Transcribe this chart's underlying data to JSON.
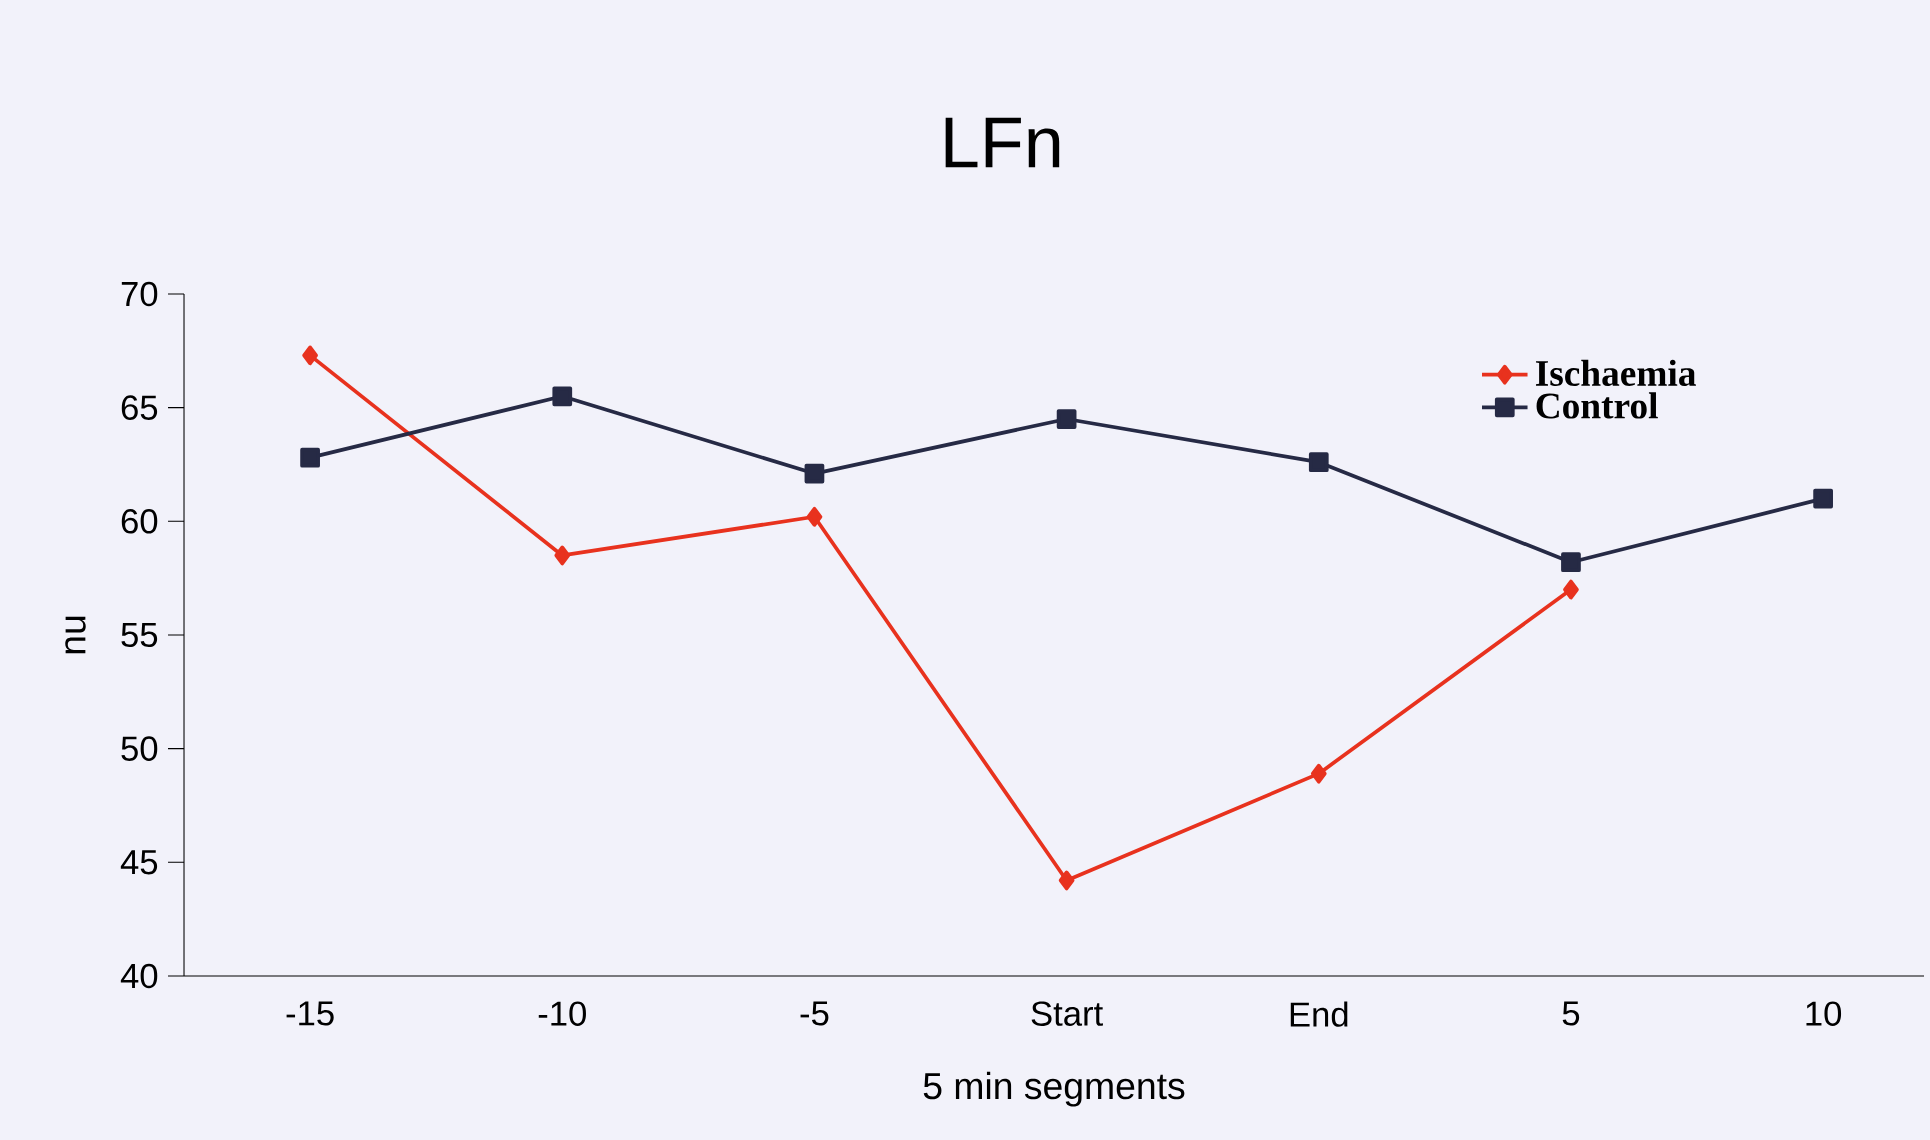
{
  "chart_data": {
    "type": "line",
    "title": "LFn",
    "xlabel": "5 min segments",
    "ylabel": "nu",
    "categories": [
      "-15",
      "-10",
      "-5",
      "Start",
      "End",
      "5",
      "10"
    ],
    "series": [
      {
        "name": "Ischaemia",
        "color": "#e8321e",
        "marker": "diamond",
        "values": [
          67.3,
          58.5,
          60.2,
          44.2,
          48.9,
          57.0,
          null
        ]
      },
      {
        "name": "Control",
        "color": "#262a45",
        "marker": "square",
        "values": [
          62.8,
          65.5,
          62.1,
          64.5,
          62.6,
          58.2,
          61.0
        ]
      }
    ],
    "ylim": [
      40,
      70
    ],
    "yticks": [
      40,
      45,
      50,
      55,
      60,
      65,
      70
    ],
    "legend": "top right",
    "line_style": "solid"
  }
}
